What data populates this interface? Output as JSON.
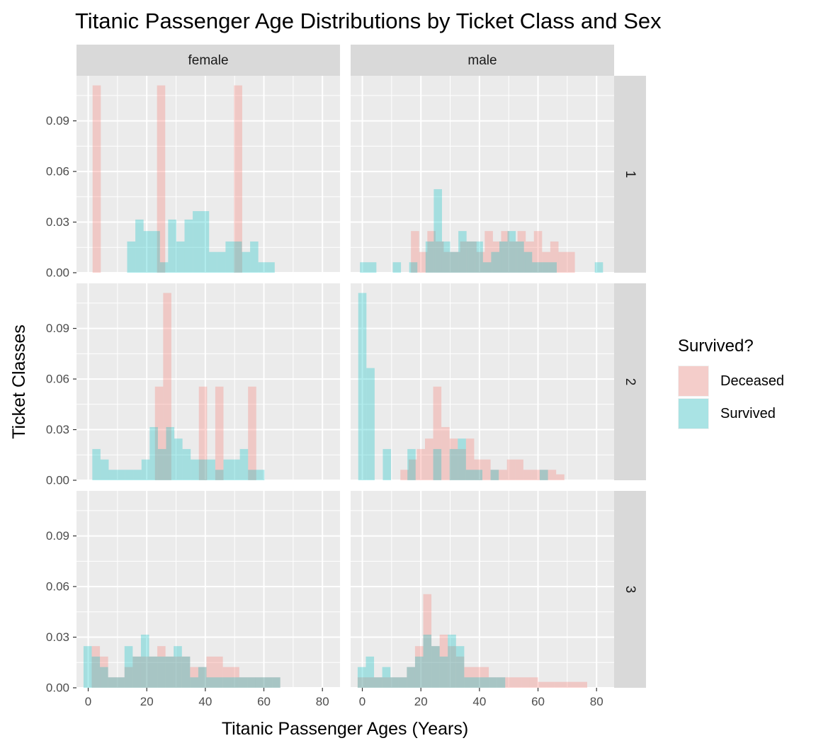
{
  "chart_data": {
    "type": "histogram",
    "title": "Titanic Passenger Age Distributions by Ticket Class and Sex",
    "xlabel": "Titanic Passenger Ages (Years)",
    "ylabel": "Ticket Classes",
    "xlim": [
      -4,
      86
    ],
    "ylim": [
      0,
      0.1167
    ],
    "x_ticks": [
      "0",
      "20",
      "40",
      "60",
      "80"
    ],
    "y_ticks": [
      "0.00",
      "0.03",
      "0.06",
      "0.09"
    ],
    "bin_width": 2.8,
    "column_facets": [
      "female",
      "male"
    ],
    "row_facets": [
      "1",
      "2",
      "3"
    ],
    "legend": {
      "title": "Survived?",
      "position": "right",
      "entries": [
        {
          "name": "Deceased",
          "color": "#F8766D"
        },
        {
          "name": "Survived",
          "color": "#00BFC4"
        }
      ]
    },
    "panels": [
      {
        "column": "female",
        "row": "1",
        "series": [
          {
            "name": "Deceased",
            "bins": [
              [
                1.5,
                0.111
              ],
              [
                23.5,
                0.111
              ],
              [
                49.8,
                0.111
              ]
            ]
          },
          {
            "name": "Survived",
            "bins": [
              [
                13.3,
                0.0185
              ],
              [
                16.1,
                0.0315
              ],
              [
                18.9,
                0.0247
              ],
              [
                21.7,
                0.0247
              ],
              [
                24.5,
                0.0062
              ],
              [
                27.3,
                0.0315
              ],
              [
                30.1,
                0.0185
              ],
              [
                32.9,
                0.0315
              ],
              [
                35.7,
                0.0365
              ],
              [
                38.5,
                0.0365
              ],
              [
                41.3,
                0.0123
              ],
              [
                44.1,
                0.0123
              ],
              [
                46.9,
                0.0185
              ],
              [
                49.7,
                0.0185
              ],
              [
                52.5,
                0.0123
              ],
              [
                55.3,
                0.0185
              ],
              [
                58.1,
                0.0062
              ],
              [
                60.9,
                0.0062
              ]
            ]
          }
        ]
      },
      {
        "column": "male",
        "row": "1",
        "series": [
          {
            "name": "Deceased",
            "bins": [
              [
                16.6,
                0.0247
              ],
              [
                19.4,
                0.0123
              ],
              [
                22.2,
                0.0247
              ],
              [
                25.0,
                0.0185
              ],
              [
                27.8,
                0.0123
              ],
              [
                30.6,
                0.0123
              ],
              [
                33.4,
                0.0185
              ],
              [
                36.2,
                0.0185
              ],
              [
                39.0,
                0.0123
              ],
              [
                41.8,
                0.0247
              ],
              [
                44.6,
                0.0185
              ],
              [
                47.4,
                0.0247
              ],
              [
                50.2,
                0.0185
              ],
              [
                53.0,
                0.0247
              ],
              [
                55.8,
                0.0185
              ],
              [
                58.6,
                0.0247
              ],
              [
                61.4,
                0.0123
              ],
              [
                64.2,
                0.0185
              ],
              [
                67.0,
                0.0123
              ],
              [
                69.8,
                0.0123
              ]
            ]
          },
          {
            "name": "Survived",
            "bins": [
              [
                -0.8,
                0.0062
              ],
              [
                2.0,
                0.0062
              ],
              [
                10.4,
                0.0062
              ],
              [
                16.0,
                0.0062
              ],
              [
                21.6,
                0.0185
              ],
              [
                24.4,
                0.0495
              ],
              [
                27.2,
                0.0185
              ],
              [
                30.0,
                0.0123
              ],
              [
                32.8,
                0.0247
              ],
              [
                35.6,
                0.0185
              ],
              [
                38.4,
                0.0185
              ],
              [
                41.2,
                0.0062
              ],
              [
                44.0,
                0.0123
              ],
              [
                46.8,
                0.0185
              ],
              [
                49.6,
                0.0247
              ],
              [
                52.4,
                0.0185
              ],
              [
                55.2,
                0.0123
              ],
              [
                58.0,
                0.0062
              ],
              [
                60.8,
                0.0062
              ],
              [
                63.6,
                0.0062
              ],
              [
                79.4,
                0.0062
              ]
            ]
          }
        ]
      },
      {
        "column": "female",
        "row": "2",
        "series": [
          {
            "name": "Deceased",
            "bins": [
              [
                22.8,
                0.0555
              ],
              [
                25.6,
                0.111
              ],
              [
                37.8,
                0.0555
              ],
              [
                43.4,
                0.0555
              ],
              [
                54.6,
                0.0555
              ]
            ]
          },
          {
            "name": "Survived",
            "bins": [
              [
                1.4,
                0.0185
              ],
              [
                4.2,
                0.0123
              ],
              [
                7.0,
                0.0062
              ],
              [
                9.8,
                0.0062
              ],
              [
                12.6,
                0.0062
              ],
              [
                15.4,
                0.0062
              ],
              [
                18.2,
                0.0123
              ],
              [
                21.0,
                0.0315
              ],
              [
                23.8,
                0.0185
              ],
              [
                26.6,
                0.0315
              ],
              [
                29.4,
                0.0247
              ],
              [
                32.2,
                0.0185
              ],
              [
                35.0,
                0.0123
              ],
              [
                37.8,
                0.0123
              ],
              [
                40.6,
                0.0123
              ],
              [
                43.4,
                0.0062
              ],
              [
                46.2,
                0.0123
              ],
              [
                49.0,
                0.0123
              ],
              [
                51.8,
                0.0185
              ],
              [
                54.6,
                0.0062
              ],
              [
                57.4,
                0.0062
              ]
            ]
          }
        ]
      },
      {
        "column": "male",
        "row": "2",
        "series": [
          {
            "name": "Deceased",
            "bins": [
              [
                13.0,
                0.0062
              ],
              [
                15.8,
                0.0123
              ],
              [
                18.6,
                0.0185
              ],
              [
                21.4,
                0.0247
              ],
              [
                24.2,
                0.0555
              ],
              [
                27.0,
                0.0315
              ],
              [
                29.8,
                0.0247
              ],
              [
                32.6,
                0.0185
              ],
              [
                35.4,
                0.0247
              ],
              [
                38.2,
                0.0123
              ],
              [
                41.0,
                0.0123
              ],
              [
                43.8,
                0.0062
              ],
              [
                46.6,
                0.0062
              ],
              [
                49.4,
                0.0123
              ],
              [
                52.2,
                0.0123
              ],
              [
                55.0,
                0.0062
              ],
              [
                57.8,
                0.0062
              ],
              [
                60.6,
                0.0062
              ],
              [
                63.4,
                0.0062
              ],
              [
                66.2,
                0.0035
              ]
            ]
          },
          {
            "name": "Survived",
            "bins": [
              [
                -1.4,
                0.111
              ],
              [
                1.4,
                0.0665
              ],
              [
                7.0,
                0.0185
              ],
              [
                15.4,
                0.0185
              ],
              [
                24.2,
                0.0185
              ],
              [
                29.8,
                0.0185
              ],
              [
                32.6,
                0.0247
              ],
              [
                35.4,
                0.0062
              ],
              [
                38.2,
                0.0062
              ],
              [
                43.8,
                0.0062
              ],
              [
                60.6,
                0.0062
              ]
            ]
          }
        ]
      },
      {
        "column": "female",
        "row": "3",
        "series": [
          {
            "name": "Deceased",
            "bins": [
              [
                1.2,
                0.0247
              ],
              [
                4.0,
                0.0185
              ],
              [
                6.8,
                0.0062
              ],
              [
                9.6,
                0.0062
              ],
              [
                12.4,
                0.0123
              ],
              [
                15.2,
                0.0185
              ],
              [
                18.0,
                0.0185
              ],
              [
                20.8,
                0.0185
              ],
              [
                23.6,
                0.0247
              ],
              [
                26.4,
                0.0185
              ],
              [
                29.2,
                0.0185
              ],
              [
                32.0,
                0.0185
              ],
              [
                34.8,
                0.0123
              ],
              [
                37.6,
                0.0123
              ],
              [
                40.4,
                0.0185
              ],
              [
                43.2,
                0.0185
              ],
              [
                46.0,
                0.0123
              ],
              [
                48.8,
                0.0123
              ],
              [
                51.6,
                0.0062
              ],
              [
                54.4,
                0.0062
              ],
              [
                57.2,
                0.0062
              ],
              [
                60.0,
                0.0062
              ],
              [
                62.8,
                0.0062
              ]
            ]
          },
          {
            "name": "Survived",
            "bins": [
              [
                -1.6,
                0.0247
              ],
              [
                1.2,
                0.0185
              ],
              [
                4.0,
                0.0123
              ],
              [
                6.8,
                0.0062
              ],
              [
                9.6,
                0.0062
              ],
              [
                12.4,
                0.0247
              ],
              [
                15.2,
                0.0185
              ],
              [
                18.0,
                0.0315
              ],
              [
                20.8,
                0.0185
              ],
              [
                23.6,
                0.0185
              ],
              [
                26.4,
                0.0185
              ],
              [
                29.2,
                0.0247
              ],
              [
                32.0,
                0.0185
              ],
              [
                34.8,
                0.0062
              ],
              [
                37.6,
                0.0123
              ],
              [
                40.4,
                0.0062
              ],
              [
                43.2,
                0.0062
              ],
              [
                46.0,
                0.0062
              ],
              [
                48.8,
                0.0062
              ],
              [
                51.6,
                0.0062
              ],
              [
                54.4,
                0.0062
              ],
              [
                57.2,
                0.0062
              ],
              [
                60.0,
                0.0062
              ],
              [
                62.8,
                0.0062
              ]
            ]
          }
        ]
      },
      {
        "column": "male",
        "row": "3",
        "series": [
          {
            "name": "Deceased",
            "bins": [
              [
                -1.6,
                0.0062
              ],
              [
                1.2,
                0.0062
              ],
              [
                4.0,
                0.0062
              ],
              [
                6.8,
                0.0062
              ],
              [
                9.6,
                0.0062
              ],
              [
                12.4,
                0.0062
              ],
              [
                15.2,
                0.0123
              ],
              [
                18.0,
                0.0247
              ],
              [
                20.8,
                0.0555
              ],
              [
                23.6,
                0.0247
              ],
              [
                26.4,
                0.0315
              ],
              [
                29.2,
                0.0247
              ],
              [
                32.0,
                0.0185
              ],
              [
                34.8,
                0.0123
              ],
              [
                37.6,
                0.0123
              ],
              [
                40.4,
                0.0123
              ],
              [
                43.2,
                0.0062
              ],
              [
                46.0,
                0.0062
              ],
              [
                48.8,
                0.0062
              ],
              [
                51.6,
                0.0062
              ],
              [
                54.4,
                0.0062
              ],
              [
                57.2,
                0.0062
              ],
              [
                60.0,
                0.0035
              ],
              [
                62.8,
                0.0035
              ],
              [
                65.6,
                0.0035
              ],
              [
                68.4,
                0.0035
              ],
              [
                71.2,
                0.0035
              ],
              [
                74.0,
                0.0035
              ]
            ]
          },
          {
            "name": "Survived",
            "bins": [
              [
                -1.6,
                0.0123
              ],
              [
                1.2,
                0.0185
              ],
              [
                4.0,
                0.0062
              ],
              [
                6.8,
                0.0123
              ],
              [
                9.6,
                0.0062
              ],
              [
                12.4,
                0.0062
              ],
              [
                15.2,
                0.0123
              ],
              [
                18.0,
                0.0185
              ],
              [
                20.8,
                0.0315
              ],
              [
                23.6,
                0.0247
              ],
              [
                26.4,
                0.0185
              ],
              [
                29.2,
                0.0315
              ],
              [
                32.0,
                0.0247
              ],
              [
                34.8,
                0.0062
              ],
              [
                37.6,
                0.0062
              ],
              [
                40.4,
                0.0062
              ],
              [
                43.2,
                0.0062
              ],
              [
                46.0,
                0.0062
              ]
            ]
          }
        ]
      }
    ]
  }
}
